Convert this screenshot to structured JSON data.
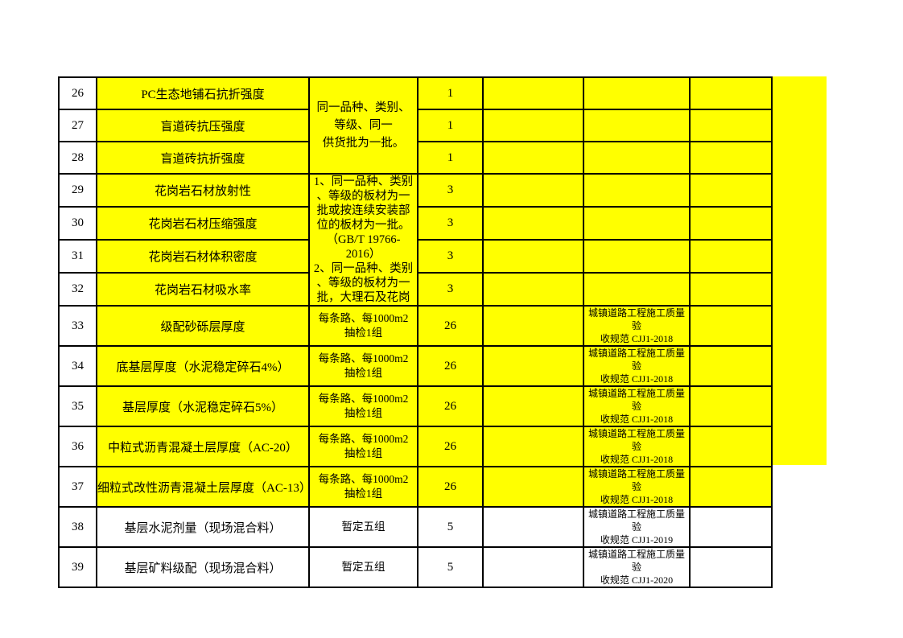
{
  "colors": {
    "highlight": "#ffff00",
    "border": "#000000",
    "text": "#000000",
    "page_background": "#ffffff"
  },
  "table": {
    "rows": [
      {
        "no": "26",
        "item": "PC生态地铺石抗折强度",
        "sampling": "同一品种、类别、\n等级、同一\n供货批为一批。",
        "sampling_span": 3,
        "sampling_style": "first",
        "qty": "1",
        "blank1": "",
        "regulation": "",
        "blank2": "",
        "highlight": true
      },
      {
        "no": "27",
        "item": "盲道砖抗压强度",
        "sampling": null,
        "qty": "1",
        "blank1": "",
        "regulation": "",
        "blank2": "",
        "highlight": true
      },
      {
        "no": "28",
        "item": "盲道砖抗折强度",
        "sampling": null,
        "qty": "1",
        "blank1": "",
        "regulation": "",
        "blank2": "",
        "highlight": true
      },
      {
        "no": "29",
        "item": "花岗岩石材放射性",
        "sampling": "1、同一品种、类别\n、等级的板材为一\n批或按连续安装部\n位的板材为一批。\n（GB/T 19766-\n2016）\n2、同一品种、类别\n、等级的板材为一\n批，大理石及花岗",
        "sampling_span": 4,
        "sampling_style": "big",
        "qty": "3",
        "blank1": "",
        "regulation": "",
        "blank2": "",
        "highlight": true
      },
      {
        "no": "30",
        "item": "花岗岩石材压缩强度",
        "sampling": null,
        "qty": "3",
        "blank1": "",
        "regulation": "",
        "blank2": "",
        "highlight": true
      },
      {
        "no": "31",
        "item": "花岗岩石材体积密度",
        "sampling": null,
        "qty": "3",
        "blank1": "",
        "regulation": "",
        "blank2": "",
        "highlight": true
      },
      {
        "no": "32",
        "item": "花岗岩石材吸水率",
        "sampling": null,
        "qty": "3",
        "blank1": "",
        "regulation": "",
        "blank2": "",
        "highlight": true
      },
      {
        "no": "33",
        "item": "级配砂砾层厚度",
        "sampling": "每条路、每1000m2\n抽检1组",
        "sampling_span": 1,
        "sampling_style": "normal",
        "qty": "26",
        "blank1": "",
        "regulation": "城镇道路工程施工质量验\n收规范 CJJ1-2018",
        "blank2": "",
        "highlight": true
      },
      {
        "no": "34",
        "item": "底基层厚度（水泥稳定碎石4%）",
        "sampling": "每条路、每1000m2\n抽检1组",
        "sampling_span": 1,
        "sampling_style": "normal",
        "qty": "26",
        "blank1": "",
        "regulation": "城镇道路工程施工质量验\n收规范 CJJ1-2018",
        "blank2": "",
        "highlight": true
      },
      {
        "no": "35",
        "item": "基层厚度（水泥稳定碎石5%）",
        "sampling": "每条路、每1000m2\n抽检1组",
        "sampling_span": 1,
        "sampling_style": "normal",
        "qty": "26",
        "blank1": "",
        "regulation": "城镇道路工程施工质量验\n收规范 CJJ1-2018",
        "blank2": "",
        "highlight": true
      },
      {
        "no": "36",
        "item": "中粒式沥青混凝土层厚度（AC-20）",
        "sampling": "每条路、每1000m2\n抽检1组",
        "sampling_span": 1,
        "sampling_style": "normal",
        "qty": "26",
        "blank1": "",
        "regulation": "城镇道路工程施工质量验\n收规范 CJJ1-2018",
        "blank2": "",
        "highlight": true
      },
      {
        "no": "37",
        "item": "细粒式改性沥青混凝土层厚度（AC-13）",
        "sampling": "每条路、每1000m2\n抽检1组",
        "sampling_span": 1,
        "sampling_style": "normal",
        "qty": "26",
        "blank1": "",
        "regulation": "城镇道路工程施工质量验\n收规范 CJJ1-2018",
        "blank2": "",
        "highlight": true
      },
      {
        "no": "38",
        "item": "基层水泥剂量（现场混合料）",
        "sampling": "暂定五组",
        "sampling_span": 1,
        "sampling_style": "normal",
        "qty": "5",
        "blank1": "",
        "regulation": "城镇道路工程施工质量验\n收规范 CJJ1-2019",
        "blank2": "",
        "highlight": false
      },
      {
        "no": "39",
        "item": "基层矿料级配（现场混合料）",
        "sampling": "暂定五组",
        "sampling_span": 1,
        "sampling_style": "normal",
        "qty": "5",
        "blank1": "",
        "regulation": "城镇道路工程施工质量验\n收规范 CJJ1-2020",
        "blank2": "",
        "highlight": false
      }
    ]
  }
}
